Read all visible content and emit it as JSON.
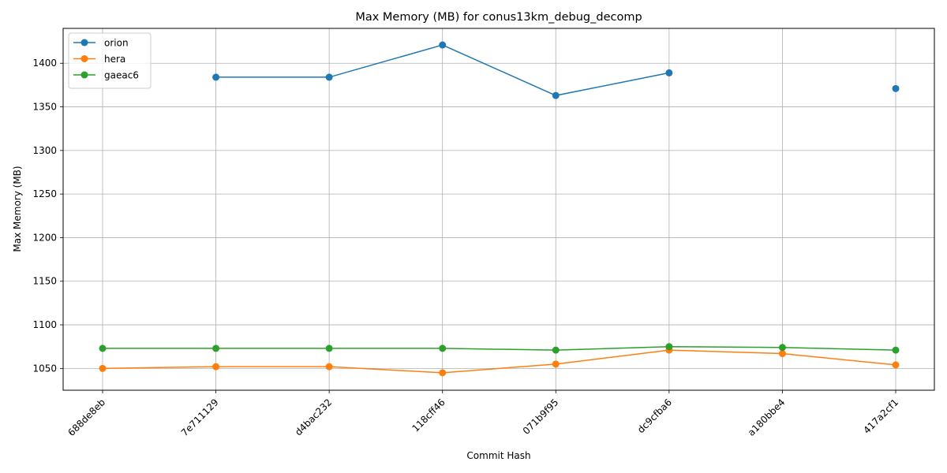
{
  "chart_data": {
    "type": "line",
    "title": "Max Memory (MB) for conus13km_debug_decomp",
    "xlabel": "Commit Hash",
    "ylabel": "Max Memory (MB)",
    "categories": [
      "688de8eb",
      "7e711129",
      "d4bac232",
      "118cff46",
      "071b9f95",
      "dc9cfba6",
      "a180bbe4",
      "417a2cf1"
    ],
    "ylim": [
      1025,
      1440
    ],
    "yticks": [
      1050,
      1100,
      1150,
      1200,
      1250,
      1300,
      1350,
      1400
    ],
    "grid": true,
    "legend_position": "top-left",
    "series": [
      {
        "name": "orion",
        "color": "#1f77b4",
        "values": [
          null,
          1384,
          1384,
          1421,
          1363,
          1389,
          null,
          1371
        ]
      },
      {
        "name": "hera",
        "color": "#ff7f0e",
        "values": [
          1050,
          1052,
          1052,
          1045,
          1055,
          1071,
          1067,
          1054
        ]
      },
      {
        "name": "gaeac6",
        "color": "#2ca02c",
        "values": [
          1073,
          1073,
          1073,
          1073,
          1071,
          1075,
          1074,
          1071
        ]
      }
    ]
  }
}
